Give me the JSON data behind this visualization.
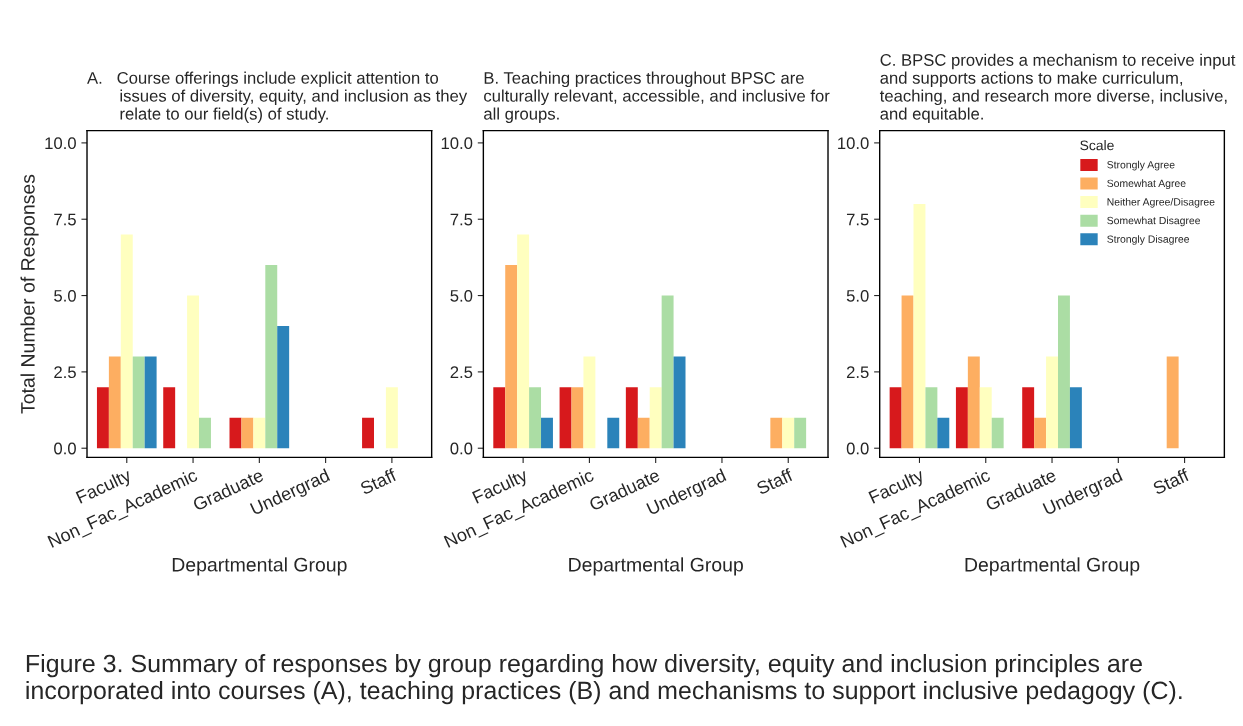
{
  "chart_data": [
    {
      "type": "bar",
      "title": "A.   Course offerings include explicit attention to\n       issues of diversity, equity, and inclusion as they\n       relate to our field(s) of study.",
      "xlabel": "Departmental Group",
      "ylabel": "Total Number of Responses",
      "categories": [
        "Faculty",
        "Non_Fac_Academic",
        "Graduate",
        "Undergrad",
        "Staff"
      ],
      "ylim": [
        -0.3,
        10.4
      ],
      "yticks": [
        {
          "value": 0,
          "label": "0.0"
        },
        {
          "value": 2.5,
          "label": "2.5"
        },
        {
          "value": 5,
          "label": "5.0"
        },
        {
          "value": 7.5,
          "label": "7.5"
        },
        {
          "value": 10,
          "label": "10.0"
        }
      ],
      "grid": false,
      "legend": false,
      "series": [
        {
          "color": "#d7191c",
          "values": [
            2,
            2,
            1,
            null,
            1
          ]
        },
        {
          "color": "#fdae61",
          "values": [
            3,
            null,
            1,
            null,
            null
          ]
        },
        {
          "color": "#ffffbf",
          "values": [
            7,
            5,
            1,
            null,
            2
          ]
        },
        {
          "color": "#abdda4",
          "values": [
            3,
            1,
            6,
            null,
            null
          ]
        },
        {
          "color": "#2b83ba",
          "values": [
            3,
            null,
            4,
            null,
            null
          ]
        }
      ]
    },
    {
      "type": "bar",
      "title": "B. Teaching practices throughout BPSC are\nculturally relevant, accessible, and inclusive for\nall groups.",
      "xlabel": "Departmental Group",
      "categories": [
        "Faculty",
        "Non_Fac_Academic",
        "Graduate",
        "Undergrad",
        "Staff"
      ],
      "ylim": [
        -0.3,
        10.4
      ],
      "yticks": [
        {
          "value": 0,
          "label": "0.0"
        },
        {
          "value": 2.5,
          "label": "2.5"
        },
        {
          "value": 5,
          "label": "5.0"
        },
        {
          "value": 7.5,
          "label": "7.5"
        },
        {
          "value": 10,
          "label": "10.0"
        }
      ],
      "grid": false,
      "legend": false,
      "series": [
        {
          "color": "#d7191c",
          "values": [
            2,
            2,
            2,
            null,
            null
          ]
        },
        {
          "color": "#fdae61",
          "values": [
            6,
            2,
            1,
            null,
            1
          ]
        },
        {
          "color": "#ffffbf",
          "values": [
            7,
            3,
            2,
            null,
            1
          ]
        },
        {
          "color": "#abdda4",
          "values": [
            2,
            null,
            5,
            null,
            1
          ]
        },
        {
          "color": "#2b83ba",
          "values": [
            1,
            1,
            3,
            null,
            null
          ]
        }
      ]
    },
    {
      "type": "bar",
      "title": "C. BPSC provides a mechanism to receive input\nand supports actions to make curriculum,\nteaching, and research more diverse, inclusive,\nand equitable.",
      "xlabel": "Departmental Group",
      "legend_title": "Scale",
      "categories": [
        "Faculty",
        "Non_Fac_Academic",
        "Graduate",
        "Undergrad",
        "Staff"
      ],
      "ylim": [
        -0.3,
        10.4
      ],
      "yticks": [
        {
          "value": 0,
          "label": "0.0"
        },
        {
          "value": 2.5,
          "label": "2.5"
        },
        {
          "value": 5,
          "label": "5.0"
        },
        {
          "value": 7.5,
          "label": "7.5"
        },
        {
          "value": 10,
          "label": "10.0"
        }
      ],
      "grid": false,
      "legend": "top right",
      "series": [
        {
          "name": "Strongly Agree",
          "color": "#d7191c",
          "values": [
            2,
            2,
            2,
            null,
            null
          ]
        },
        {
          "name": "Somewhat Agree",
          "color": "#fdae61",
          "values": [
            5,
            3,
            1,
            null,
            3
          ]
        },
        {
          "name": "Neither Agree/Disagree",
          "color": "#ffffbf",
          "values": [
            8,
            2,
            3,
            null,
            null
          ]
        },
        {
          "name": "Somewhat Disagree",
          "color": "#abdda4",
          "values": [
            2,
            1,
            5,
            null,
            null
          ]
        },
        {
          "name": "Strongly Disagree",
          "color": "#2b83ba",
          "values": [
            1,
            null,
            2,
            null,
            null
          ]
        }
      ],
      "annotations": [
        "Figure 3. Summary of responses by group regarding how diversity, equity and inclusion principles are incorporated into courses (A), teaching practices (B) and mechanisms to support inclusive pedagogy (C)."
      ]
    }
  ]
}
